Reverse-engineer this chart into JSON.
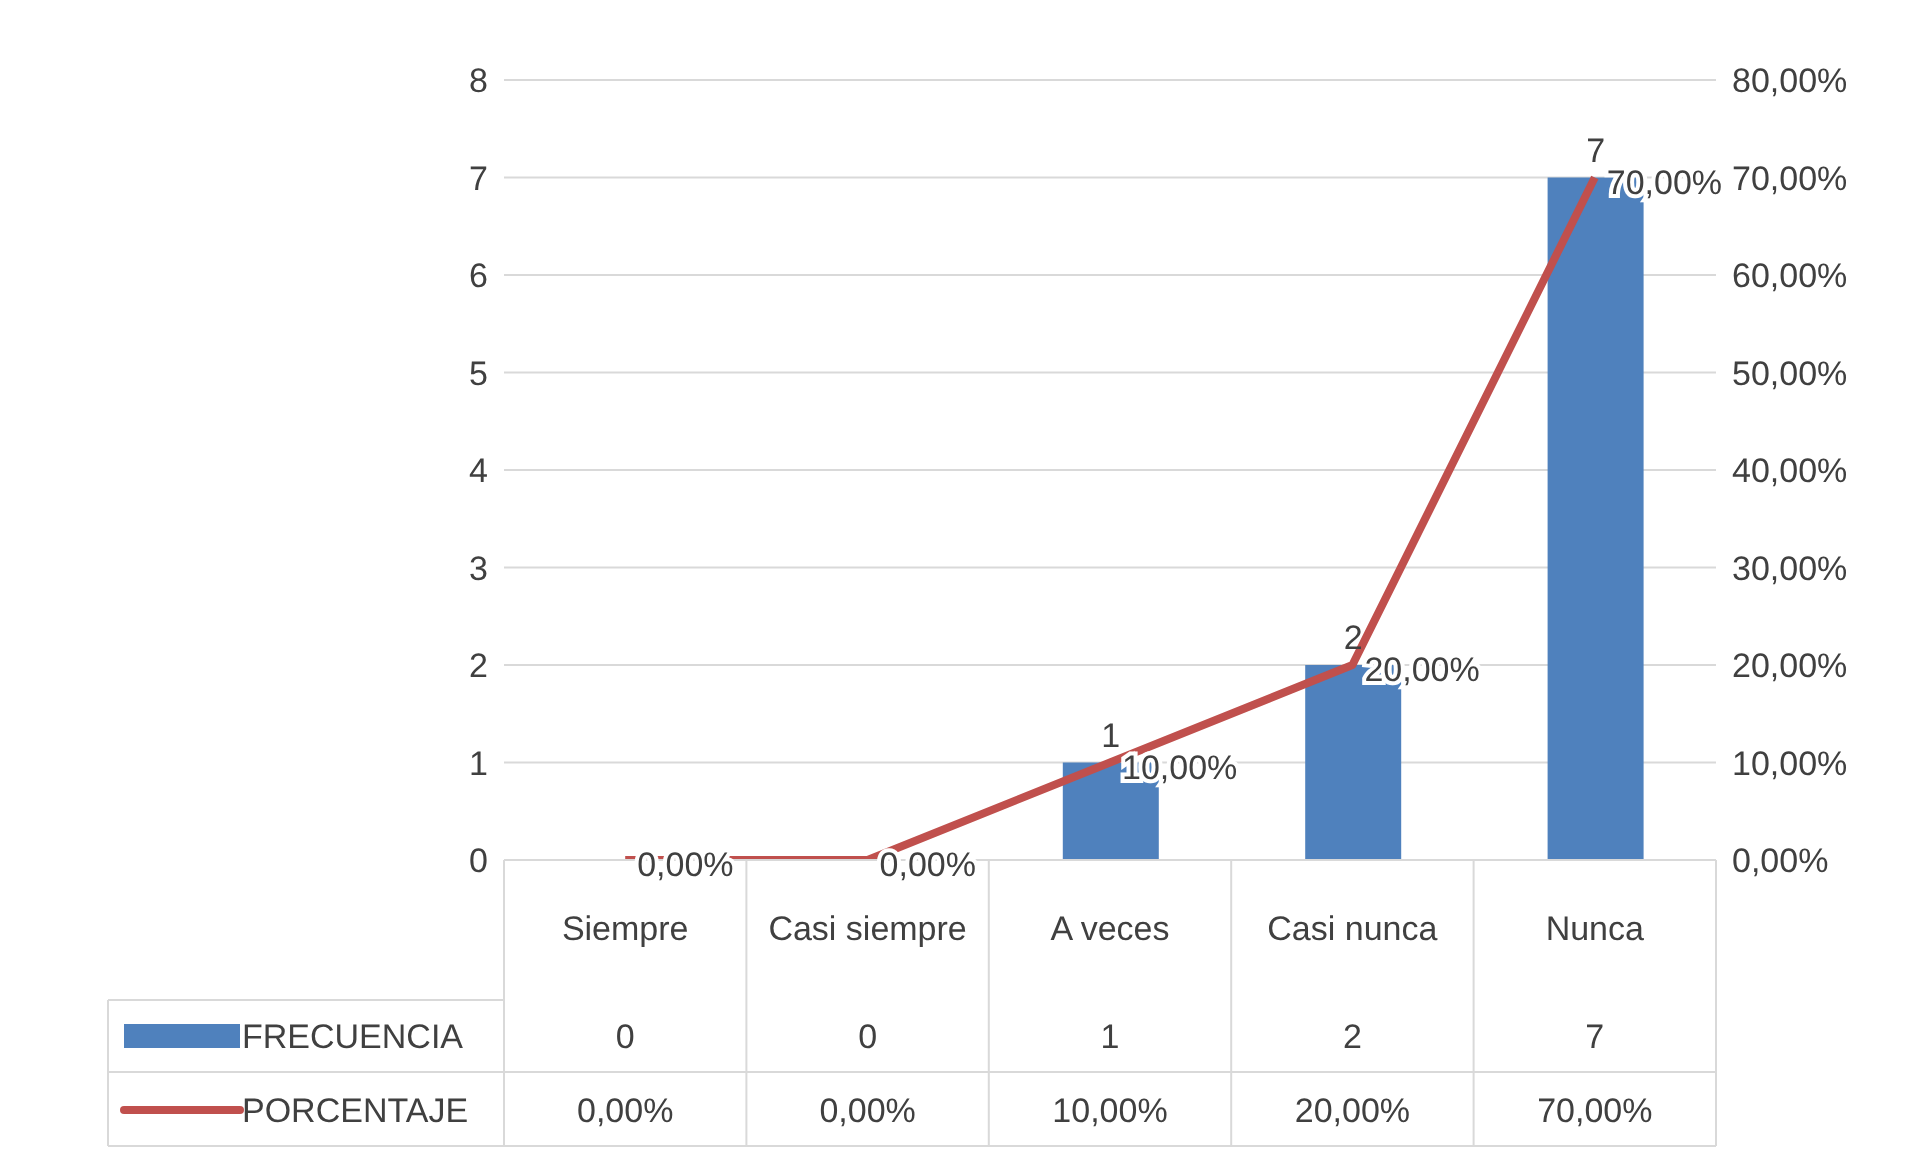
{
  "chart_data": {
    "type": "bar",
    "categories": [
      "Siempre",
      "Casi siempre",
      "A veces",
      "Casi nunca",
      "Nunca"
    ],
    "series": [
      {
        "name": "FRECUENCIA",
        "color": "#4f81bd",
        "values": [
          0,
          0,
          1,
          2,
          7
        ],
        "value_labels": [
          "0",
          "0",
          "1",
          "2",
          "7"
        ]
      },
      {
        "name": "PORCENTAJE",
        "type": "line",
        "axis": "y2",
        "color": "#c0504d",
        "values": [
          0,
          0,
          10,
          20,
          70
        ],
        "value_labels": [
          "0,00%",
          "0,00%",
          "10,00%",
          "20,00%",
          "70,00%"
        ]
      }
    ],
    "ylim": [
      0,
      8
    ],
    "yticks": [
      0,
      1,
      2,
      3,
      4,
      5,
      6,
      7,
      8
    ],
    "y2lim": [
      0,
      80
    ],
    "y2ticks": [
      {
        "value": 0,
        "label": "0,00%"
      },
      {
        "value": 10,
        "label": "10,00%"
      },
      {
        "value": 20,
        "label": "20,00%"
      },
      {
        "value": 30,
        "label": "30,00%"
      },
      {
        "value": 40,
        "label": "40,00%"
      },
      {
        "value": 50,
        "label": "50,00%"
      },
      {
        "value": 60,
        "label": "60,00%"
      },
      {
        "value": 70,
        "label": "70,00%"
      },
      {
        "value": 80,
        "label": "80,00%"
      }
    ],
    "grid": "y",
    "legend": "bottom",
    "marker": "none",
    "line_style": "solid"
  }
}
